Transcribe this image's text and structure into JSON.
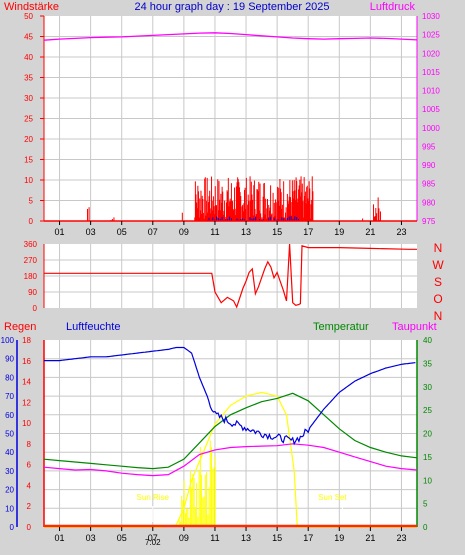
{
  "title": "24 hour graph day : 19 September 2025",
  "colors": {
    "wind": "#ff0000",
    "pressure": "#ff00ff",
    "humidity": "#0000dd",
    "temperature": "#008800",
    "dewpoint": "#ff00ff",
    "rain": "#ff2a00",
    "sun": "#ffff00",
    "bg": "#d4d4d4",
    "plot": "#ffffff",
    "grid": "#c8c8c8"
  },
  "chart_data": [
    {
      "type": "line",
      "id": "wind-pressure",
      "left_label": "Windstärke",
      "right_label": "Luftdruck",
      "y_left": {
        "min": 0,
        "max": 50,
        "ticks": [
          "0",
          "5",
          "10",
          "15",
          "20",
          "25",
          "30",
          "35",
          "40",
          "45",
          "50"
        ]
      },
      "y_right": {
        "min": 975,
        "max": 1030,
        "ticks": [
          "975",
          "980",
          "985",
          "990",
          "995",
          "1000",
          "1005",
          "1010",
          "1015",
          "1020",
          "1025",
          "1030"
        ]
      },
      "x_ticks": [
        "01",
        "03",
        "05",
        "07",
        "09",
        "11",
        "13",
        "15",
        "17",
        "19",
        "21",
        "23"
      ],
      "series": [
        {
          "key": "pressure",
          "axis": "right",
          "x": [
            0,
            1,
            2,
            3,
            4,
            5,
            6,
            7,
            8,
            9,
            10,
            11,
            12,
            13,
            14,
            15,
            16,
            17,
            18,
            19,
            20,
            21,
            22,
            23,
            24
          ],
          "y": [
            1023.5,
            1023.8,
            1024.0,
            1024.2,
            1024.3,
            1024.4,
            1024.6,
            1024.8,
            1025.0,
            1025.2,
            1025.4,
            1025.5,
            1025.3,
            1025.0,
            1024.7,
            1024.4,
            1024.1,
            1023.9,
            1023.8,
            1023.9,
            1024.0,
            1024.1,
            1024.0,
            1023.8,
            1023.6
          ]
        }
      ]
    },
    {
      "type": "line",
      "id": "wind-direction",
      "y_left": {
        "min": 0,
        "max": 360,
        "ticks": [
          "0",
          "90",
          "180",
          "270",
          "360"
        ]
      },
      "y_right_labels": [
        "N",
        "W",
        "S",
        "O",
        "N"
      ],
      "series": [
        {
          "key": "direction",
          "x": [
            0,
            4,
            8,
            10.8,
            11.0,
            11.4,
            11.8,
            12.2,
            12.4,
            12.8,
            13.0,
            13.2,
            13.4,
            13.6,
            13.8,
            14.0,
            14.2,
            14.4,
            14.6,
            14.8,
            15.0,
            15.2,
            15.4,
            15.6,
            15.8,
            16.0,
            16.2,
            16.4,
            16.5,
            16.6,
            17,
            19,
            21,
            23.5,
            24
          ],
          "y": [
            195,
            195,
            195,
            195,
            90,
            30,
            60,
            40,
            5,
            110,
            150,
            200,
            220,
            80,
            120,
            170,
            220,
            260,
            230,
            170,
            200,
            150,
            100,
            40,
            360,
            30,
            15,
            20,
            25,
            350,
            340,
            340,
            335,
            330,
            330
          ]
        }
      ]
    },
    {
      "type": "line",
      "id": "climate",
      "left_label": "Regen",
      "humidity_label": "Luftfeuchte",
      "temperature_label": "Temperatur",
      "dewpoint_label": "Taupunkt",
      "y_rain": {
        "min": 0,
        "max": 16,
        "ticks": [
          "0",
          "2",
          "4",
          "6",
          "8",
          "10",
          "12",
          "14",
          "16",
          "18"
        ]
      },
      "y_humidity": {
        "min": 0,
        "max": 100,
        "ticks": [
          "0",
          "10",
          "20",
          "30",
          "40",
          "50",
          "60",
          "70",
          "80",
          "90",
          "100"
        ]
      },
      "y_temp": {
        "min": 0,
        "max": 40,
        "ticks": [
          "0",
          "5",
          "10",
          "15",
          "20",
          "25",
          "30",
          "35",
          "40"
        ]
      },
      "x_ticks": [
        "01",
        "03",
        "05",
        "07",
        "09",
        "11",
        "13",
        "15",
        "17",
        "19",
        "21",
        "23"
      ],
      "annotations": {
        "sunrise": "Sun Rise",
        "sunset": "Sun Set",
        "sunrise_time": "7:02",
        "sunrise_x": 7.0,
        "sunset_x": 19.2
      },
      "series": [
        {
          "key": "humidity",
          "axis": "humidity",
          "x": [
            0,
            1,
            2,
            3,
            4,
            5,
            6,
            7,
            8,
            8.5,
            9,
            9.5,
            10,
            10.5,
            11,
            12,
            13,
            14,
            15,
            16,
            16.5,
            17,
            18,
            19,
            20,
            21,
            22,
            23,
            24
          ],
          "y": [
            89,
            89,
            90,
            91,
            91,
            92,
            93,
            94,
            95,
            96,
            96,
            93,
            80,
            70,
            60,
            56,
            53,
            50,
            48,
            46,
            48,
            52,
            63,
            72,
            78,
            82,
            85,
            87,
            88
          ]
        },
        {
          "key": "temperature",
          "axis": "temp",
          "x": [
            0,
            1,
            2,
            3,
            4,
            5,
            6,
            7,
            8,
            9,
            10,
            11,
            12,
            13,
            14,
            15,
            16,
            17,
            18,
            19,
            20,
            21,
            22,
            23,
            24
          ],
          "y": [
            14.5,
            14.2,
            13.9,
            13.6,
            13.3,
            13.0,
            12.7,
            12.5,
            12.8,
            14.5,
            18.0,
            21.5,
            24.0,
            25.5,
            26.8,
            27.5,
            28.6,
            27.0,
            24.0,
            21.0,
            18.5,
            17.0,
            16.0,
            15.2,
            14.8
          ]
        },
        {
          "key": "dewpoint",
          "axis": "temp",
          "x": [
            0,
            1,
            2,
            3,
            4,
            5,
            6,
            7,
            8,
            9,
            10,
            11,
            12,
            13,
            14,
            15,
            16,
            17,
            18,
            19,
            20,
            21,
            22,
            23,
            24
          ],
          "y": [
            12.8,
            12.5,
            12.2,
            12.3,
            12.0,
            11.5,
            11.2,
            11.0,
            11.2,
            13.0,
            15.5,
            16.5,
            17.0,
            17.2,
            17.3,
            17.4,
            17.8,
            17.5,
            17.0,
            16.0,
            15.0,
            14.0,
            13.0,
            12.5,
            12.2
          ]
        },
        {
          "key": "sun",
          "axis": "humidity",
          "x": [
            0,
            7.5,
            8.5,
            9.0,
            9.5,
            10.0,
            10.5,
            11,
            12,
            13,
            14,
            15,
            15.6,
            16.1,
            16.3,
            17,
            24
          ],
          "y": [
            0,
            0,
            1,
            10,
            25,
            35,
            45,
            55,
            65,
            70,
            72,
            70,
            60,
            30,
            0,
            0,
            0
          ]
        },
        {
          "key": "rain",
          "axis": "rain",
          "x": [
            0,
            24
          ],
          "y": [
            0,
            0
          ]
        }
      ]
    }
  ]
}
